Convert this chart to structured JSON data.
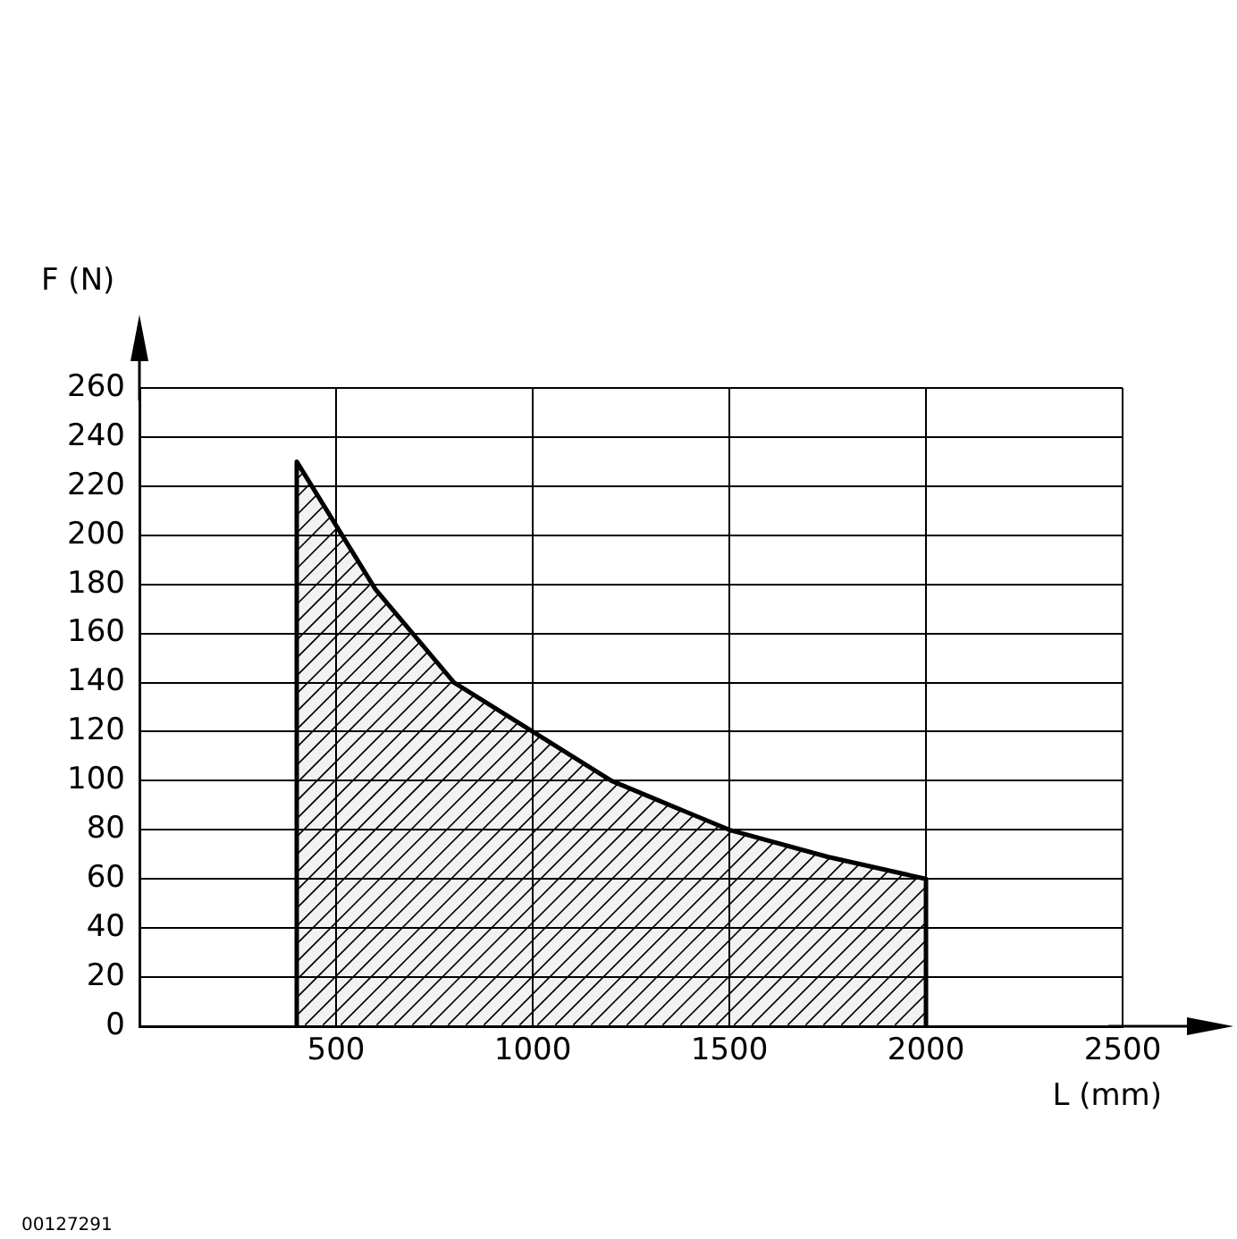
{
  "chart_data": {
    "type": "area",
    "xlabel": "L (mm)",
    "ylabel": "F (N)",
    "annotations": [
      "00127291"
    ],
    "x": [
      400,
      400,
      600,
      800,
      1000,
      1200,
      1500,
      1750,
      2000,
      2000
    ],
    "series": [
      {
        "color": "#000000",
        "values": [
          0,
          230,
          178,
          140,
          120,
          100,
          80,
          69,
          60,
          0
        ]
      }
    ],
    "xlim": [
      0,
      2500
    ],
    "xticks": [
      500,
      1000,
      1500,
      2000,
      2500
    ],
    "ylim": [
      0,
      260
    ],
    "yticks": [
      0,
      20,
      40,
      60,
      80,
      100,
      120,
      140,
      160,
      180,
      200,
      220,
      240,
      260
    ],
    "grid": true,
    "legend": false,
    "marker": "none",
    "line_style": "solid"
  }
}
